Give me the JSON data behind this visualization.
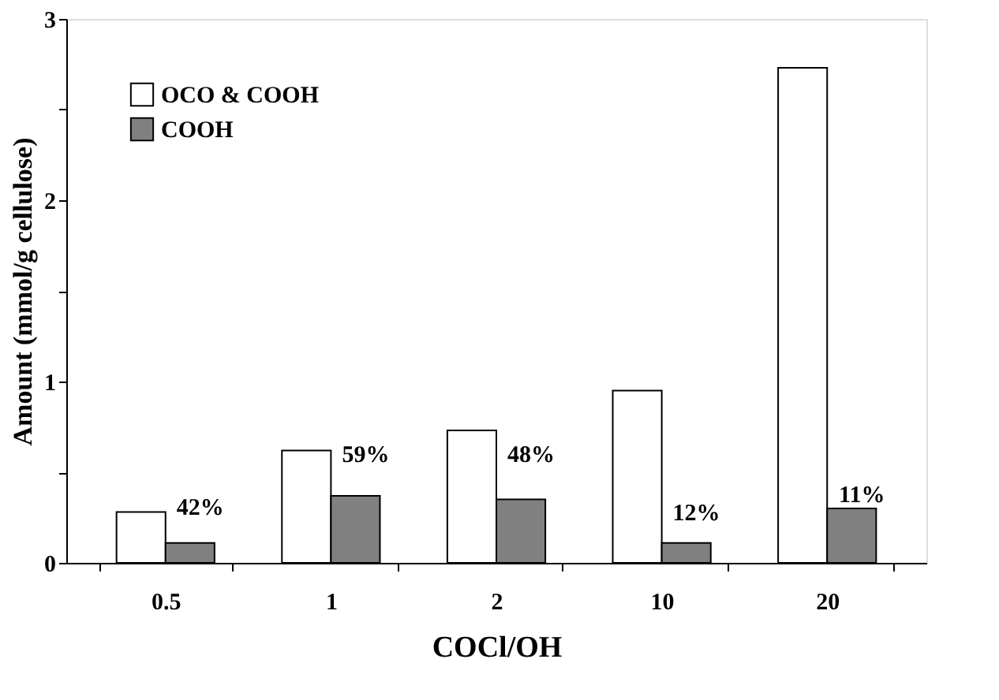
{
  "chart_data": {
    "type": "bar",
    "xlabel": "COCl/OH",
    "ylabel": "Amount (mmol/g cellulose)",
    "categories": [
      "0.5",
      "1",
      "2",
      "10",
      "20"
    ],
    "series": [
      {
        "name": "OCO & COOH",
        "color": "#ffffff",
        "values": [
          0.28,
          0.62,
          0.73,
          0.95,
          2.73
        ]
      },
      {
        "name": "COOH",
        "color": "#808080",
        "values": [
          0.11,
          0.37,
          0.35,
          0.11,
          0.3
        ]
      }
    ],
    "annotations": [
      {
        "text": "42%",
        "x": "0.5",
        "y": 0.31
      },
      {
        "text": "59%",
        "x": "1",
        "y": 0.6
      },
      {
        "text": "48%",
        "x": "2",
        "y": 0.6
      },
      {
        "text": "12%",
        "x": "10",
        "y": 0.28
      },
      {
        "text": "11%",
        "x": "20",
        "y": 0.38
      }
    ],
    "ylim": [
      0,
      3
    ],
    "yticks": [
      0,
      {
        "value": 0.5,
        "label": null
      },
      1,
      {
        "value": 1.5,
        "label": null
      },
      2,
      {
        "value": 2.5,
        "label": null
      },
      3
    ],
    "legend": "top left",
    "grid": false
  }
}
